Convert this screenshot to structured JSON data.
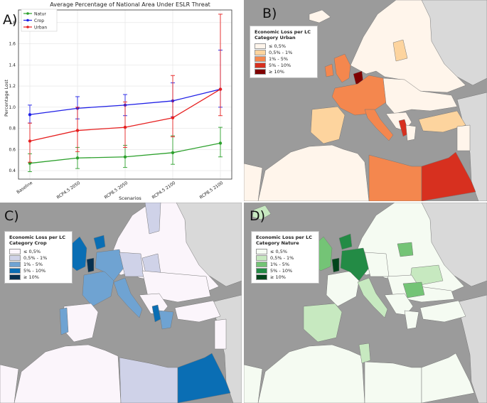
{
  "chart_data": [
    {
      "panel_letter": "A)",
      "type": "line",
      "title": "Average Percentage of National Area Under ESLR Threat",
      "xlabel": "Scenarios",
      "ylabel": "Percentage Lost",
      "categories": [
        "Baseline",
        "RCP4.5 2050",
        "RCP8.5 2050",
        "RCP4.5 2100",
        "RCP8.5 2100"
      ],
      "ylim": [
        0.32,
        1.92
      ],
      "yticks": [
        "0.4",
        "0.6",
        "0.8",
        "1.0",
        "1.2",
        "1.4",
        "1.6",
        "1.8"
      ],
      "grid": true,
      "legend_position": "top-left",
      "series": [
        {
          "name": "Natur",
          "color": "#2ca02c",
          "values": [
            0.47,
            0.52,
            0.53,
            0.57,
            0.66
          ],
          "err_low": [
            0.39,
            0.42,
            0.43,
            0.46,
            0.53
          ],
          "err_high": [
            0.56,
            0.62,
            0.64,
            0.73,
            0.81
          ]
        },
        {
          "name": "Crop",
          "color": "#1f1fe6",
          "values": [
            0.93,
            0.99,
            1.02,
            1.06,
            1.17
          ],
          "err_low": [
            0.85,
            0.89,
            0.92,
            0.91,
            1.0
          ],
          "err_high": [
            1.02,
            1.1,
            1.12,
            1.23,
            1.54
          ]
        },
        {
          "name": "Urban",
          "color": "#e62020",
          "values": [
            0.68,
            0.78,
            0.81,
            0.9,
            1.17
          ],
          "err_low": [
            0.48,
            0.58,
            0.62,
            0.72,
            0.92
          ],
          "err_high": [
            0.85,
            1.0,
            1.05,
            1.3,
            1.88
          ]
        }
      ]
    },
    {
      "panel_letter": "B)",
      "type": "map",
      "legend_title_1": "Economic Loss per LC",
      "legend_title_2": "Category Urban",
      "legend": [
        {
          "label": "≤ 0,5%",
          "color": "#fff5eb"
        },
        {
          "label": "0,5% - 1%",
          "color": "#fdd49e"
        },
        {
          "label": "1% - 5%",
          "color": "#f4874e"
        },
        {
          "label": "5% - 10%",
          "color": "#d7301f"
        },
        {
          "label": "≥ 10%",
          "color": "#7f0000"
        }
      ]
    },
    {
      "panel_letter": "C)",
      "type": "map",
      "legend_title_1": "Economic Loss per LC",
      "legend_title_2": "Category Crop",
      "legend": [
        {
          "label": "≤ 0,5%",
          "color": "#fbf5fb"
        },
        {
          "label": "0,5% - 1%",
          "color": "#cfd2e8"
        },
        {
          "label": "1% - 5%",
          "color": "#6fa3d2"
        },
        {
          "label": "5% - 10%",
          "color": "#0a6eb4"
        },
        {
          "label": "≥ 10%",
          "color": "#06304f"
        }
      ]
    },
    {
      "panel_letter": "D)",
      "type": "map",
      "legend_title_1": "Economic Loss per LC",
      "legend_title_2": "Category Nature",
      "legend": [
        {
          "label": "≤ 0,5%",
          "color": "#f5fbf2"
        },
        {
          "label": "0,5% - 1%",
          "color": "#c7e9c0"
        },
        {
          "label": "1% - 5%",
          "color": "#74c476"
        },
        {
          "label": "5% - 10%",
          "color": "#238b45"
        },
        {
          "label": "≥ 10%",
          "color": "#00441b"
        }
      ]
    }
  ],
  "colors": {
    "sea": "#9b9b9b",
    "land_outside": "#d9d9d9"
  }
}
